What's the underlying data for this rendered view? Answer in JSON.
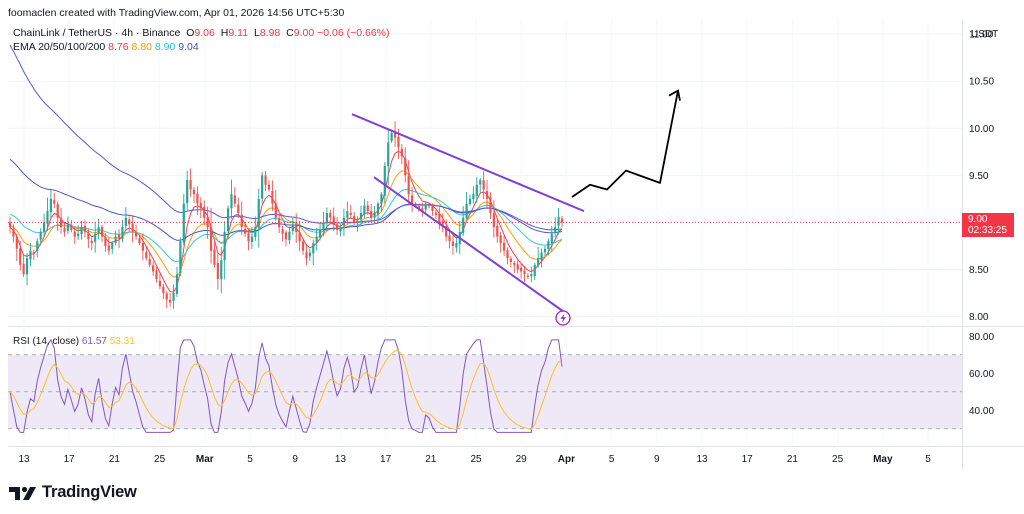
{
  "credit": "foomaclen created with TradingView.com, Apr 01, 2026 14:56 UTC+5:30",
  "symbol": "ChainLink / TetherUS · 4h · Binance",
  "ohlc": {
    "o_label": "O",
    "o": "9.06",
    "h_label": "H",
    "h": "9.11",
    "l_label": "L",
    "l": "8.98",
    "c_label": "C",
    "c": "9.00",
    "change": "−0.06 (−0.66%)"
  },
  "ema": {
    "label": "EMA 20/50/100/200",
    "values": [
      "8.76",
      "8.80",
      "8.90",
      "9.04"
    ],
    "colors": [
      "#f23645",
      "#ff9800",
      "#26c6da",
      "#3f51b5"
    ]
  },
  "rsi": {
    "label": "RSI (14, close)",
    "value": "61.57",
    "ma_value": "53.31",
    "color": "#7e57c2",
    "ma_color": "#fbc02d",
    "band_fill": "#ede7f6",
    "upper": 70,
    "middle": 50,
    "lower": 30
  },
  "price_axis": {
    "currency": "USDT",
    "ticks": [
      "11.00",
      "10.50",
      "10.00",
      "9.50",
      "9.00",
      "8.50",
      "8.00"
    ],
    "last_price": "9.00",
    "countdown": "02:33:25",
    "last_color": "#f23645"
  },
  "rsi_axis": {
    "ticks": [
      "80.00",
      "60.00",
      "40.00"
    ]
  },
  "time_axis": [
    "13",
    "17",
    "21",
    "25",
    "Mar",
    "5",
    "9",
    "13",
    "17",
    "21",
    "25",
    "29",
    "Apr",
    "5",
    "9",
    "13",
    "17",
    "21",
    "25",
    "May",
    "5"
  ],
  "logo_text": "TradingView",
  "colors": {
    "up": "#26a69a",
    "down": "#ef5350",
    "channel": "#7e3fd8",
    "projection": "#000000"
  },
  "chart_data": {
    "type": "candlestick",
    "title": "ChainLink / TetherUS · 4h · Binance",
    "y_range": [
      7.9,
      11.15
    ],
    "close_series": [
      8.95,
      8.85,
      8.72,
      8.55,
      8.45,
      8.62,
      8.7,
      8.68,
      8.8,
      8.9,
      9.0,
      9.12,
      9.25,
      9.2,
      9.05,
      8.95,
      8.9,
      8.98,
      8.92,
      8.85,
      8.88,
      8.95,
      8.9,
      8.82,
      8.78,
      8.88,
      8.95,
      8.85,
      8.75,
      8.7,
      8.78,
      8.85,
      8.82,
      8.95,
      9.05,
      8.98,
      8.9,
      8.85,
      8.78,
      8.7,
      8.62,
      8.55,
      8.48,
      8.4,
      8.32,
      8.25,
      8.18,
      8.15,
      8.25,
      8.45,
      8.8,
      9.2,
      9.45,
      9.35,
      9.3,
      9.2,
      9.15,
      9.05,
      8.95,
      8.7,
      8.55,
      8.4,
      8.6,
      8.9,
      9.15,
      9.3,
      9.2,
      9.1,
      8.95,
      8.88,
      8.8,
      8.85,
      8.95,
      9.25,
      9.5,
      9.4,
      9.35,
      9.2,
      9.05,
      8.95,
      8.88,
      8.82,
      8.9,
      8.98,
      8.9,
      8.8,
      8.7,
      8.62,
      8.68,
      8.78,
      8.85,
      8.92,
      9.0,
      9.1,
      9.05,
      8.98,
      8.92,
      8.95,
      9.05,
      9.12,
      9.08,
      9.0,
      9.02,
      9.1,
      9.18,
      9.12,
      9.05,
      9.1,
      9.2,
      9.3,
      9.6,
      9.85,
      9.95,
      9.9,
      9.8,
      9.7,
      9.5,
      9.3,
      9.2,
      9.18,
      9.15,
      9.12,
      9.2,
      9.18,
      9.12,
      9.08,
      9.0,
      8.95,
      8.85,
      8.8,
      8.75,
      8.78,
      8.9,
      9.05,
      9.2,
      9.25,
      9.3,
      9.4,
      9.45,
      9.35,
      9.25,
      9.1,
      8.95,
      8.85,
      8.78,
      8.7,
      8.62,
      8.58,
      8.55,
      8.5,
      8.48,
      8.45,
      8.42,
      8.45,
      8.55,
      8.62,
      8.68,
      8.72,
      8.8,
      8.88,
      8.95,
      9.06,
      9.0
    ],
    "ema_lines": [
      {
        "name": "EMA 20",
        "last": 8.76
      },
      {
        "name": "EMA 50",
        "last": 8.8
      },
      {
        "name": "EMA 100",
        "last": 8.9
      },
      {
        "name": "EMA 200",
        "last": 9.04
      }
    ],
    "channel": {
      "upper": [
        [
          0.0,
          10.15
        ],
        [
          1.0,
          9.12
        ]
      ],
      "lower": [
        [
          0.0,
          9.48
        ],
        [
          1.0,
          8.05
        ]
      ]
    },
    "projection_path": [
      9.27,
      9.4,
      9.35,
      9.55,
      9.42,
      10.4
    ],
    "rsi_range": [
      25,
      85
    ]
  }
}
